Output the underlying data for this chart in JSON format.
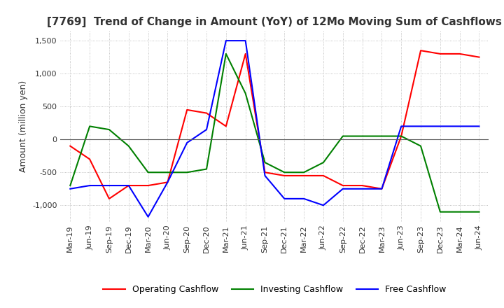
{
  "title": "[7769]  Trend of Change in Amount (YoY) of 12Mo Moving Sum of Cashflows",
  "ylabel": "Amount (million yen)",
  "ylim": [
    -1250,
    1650
  ],
  "yticks": [
    -1000,
    -500,
    0,
    500,
    1000,
    1500
  ],
  "x_labels": [
    "Mar-19",
    "Jun-19",
    "Sep-19",
    "Dec-19",
    "Mar-20",
    "Jun-20",
    "Sep-20",
    "Dec-20",
    "Mar-21",
    "Jun-21",
    "Sep-21",
    "Dec-21",
    "Mar-22",
    "Jun-22",
    "Sep-22",
    "Dec-22",
    "Mar-23",
    "Jun-23",
    "Sep-23",
    "Dec-23",
    "Mar-24",
    "Jun-24"
  ],
  "operating_cashflow": [
    -100,
    -300,
    -900,
    -700,
    -700,
    -650,
    450,
    400,
    200,
    1300,
    -500,
    -550,
    -550,
    -550,
    -700,
    -700,
    -750,
    50,
    1350,
    1300,
    1300,
    1250
  ],
  "investing_cashflow": [
    -700,
    200,
    150,
    -100,
    -500,
    -500,
    -500,
    -450,
    1300,
    700,
    -350,
    -500,
    -500,
    -350,
    50,
    50,
    50,
    50,
    -100,
    -1100,
    -1100,
    -1100
  ],
  "free_cashflow": [
    -750,
    -700,
    -700,
    -700,
    -1175,
    -650,
    -50,
    150,
    1500,
    1500,
    -550,
    -900,
    -900,
    -1000,
    -750,
    -750,
    -750,
    200,
    200,
    200,
    200,
    200
  ],
  "operating_color": "#ff0000",
  "investing_color": "#008000",
  "free_color": "#0000ff",
  "background_color": "#ffffff",
  "grid_color": "#b0b0b0",
  "title_fontsize": 11,
  "label_fontsize": 9,
  "tick_fontsize": 8,
  "legend_fontsize": 9
}
